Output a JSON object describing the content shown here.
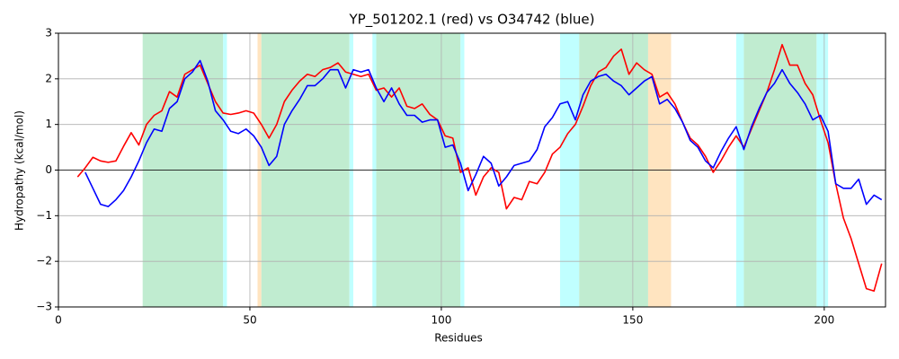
{
  "chart_data": {
    "type": "line",
    "title": "YP_501202.1 (red) vs O34742 (blue)",
    "x_label": "Residues",
    "y_label": "Hydropathy (kcal/mol)",
    "xlim": [
      0,
      216
    ],
    "ylim": [
      -3,
      3
    ],
    "xticks": [
      0,
      50,
      100,
      150,
      200
    ],
    "yticks": [
      {
        "value": -3,
        "label": "−3"
      },
      {
        "value": -2,
        "label": "−2"
      },
      {
        "value": -1,
        "label": "−1"
      },
      0,
      1,
      2,
      3
    ],
    "grid": true,
    "reference_line": 0,
    "regions": [
      {
        "start": 22,
        "end": 43,
        "color": "#c0ecd0"
      },
      {
        "start": 43,
        "end": 44,
        "color": "#c0ffff"
      },
      {
        "start": 52,
        "end": 53,
        "color": "#ffe4c0"
      },
      {
        "start": 53,
        "end": 76,
        "color": "#c0ecd0"
      },
      {
        "start": 76,
        "end": 77,
        "color": "#c0ffff"
      },
      {
        "start": 82,
        "end": 83,
        "color": "#c0ffff"
      },
      {
        "start": 83,
        "end": 105,
        "color": "#c0ecd0"
      },
      {
        "start": 105,
        "end": 106,
        "color": "#c0ffff"
      },
      {
        "start": 131,
        "end": 136,
        "color": "#c0ffff"
      },
      {
        "start": 136,
        "end": 154,
        "color": "#c0ecd0"
      },
      {
        "start": 154,
        "end": 160,
        "color": "#ffe4c0"
      },
      {
        "start": 177,
        "end": 179,
        "color": "#c0ffff"
      },
      {
        "start": 179,
        "end": 198,
        "color": "#c0ecd0"
      },
      {
        "start": 198,
        "end": 201,
        "color": "#c0ffff"
      }
    ],
    "x": [
      5,
      7,
      9,
      11,
      13,
      15,
      17,
      19,
      21,
      23,
      25,
      27,
      29,
      31,
      33,
      35,
      37,
      39,
      41,
      43,
      45,
      47,
      49,
      51,
      53,
      55,
      57,
      59,
      61,
      63,
      65,
      67,
      69,
      71,
      73,
      75,
      77,
      79,
      81,
      83,
      85,
      87,
      89,
      91,
      93,
      95,
      97,
      99,
      101,
      103,
      105,
      107,
      109,
      111,
      113,
      115,
      117,
      119,
      121,
      123,
      125,
      127,
      129,
      131,
      133,
      135,
      137,
      139,
      141,
      143,
      145,
      147,
      149,
      151,
      153,
      155,
      157,
      159,
      161,
      163,
      165,
      167,
      169,
      171,
      173,
      175,
      177,
      179,
      181,
      183,
      185,
      187,
      189,
      191,
      193,
      195,
      197,
      199,
      201,
      203,
      205,
      207,
      209,
      211,
      213,
      215
    ],
    "series": [
      {
        "name": "YP_501202.1",
        "color": "#ff0000",
        "values": [
          -0.15,
          0.05,
          0.28,
          0.2,
          0.17,
          0.2,
          0.52,
          0.82,
          0.55,
          1.0,
          1.2,
          1.3,
          1.72,
          1.6,
          2.1,
          2.2,
          2.3,
          1.9,
          1.5,
          1.25,
          1.22,
          1.25,
          1.3,
          1.25,
          1.0,
          0.7,
          1.0,
          1.5,
          1.75,
          1.95,
          2.1,
          2.05,
          2.2,
          2.25,
          2.35,
          2.15,
          2.1,
          2.05,
          2.1,
          1.75,
          1.8,
          1.6,
          1.8,
          1.4,
          1.35,
          1.45,
          1.22,
          1.1,
          0.75,
          0.7,
          -0.05,
          0.05,
          -0.55,
          -0.15,
          0.05,
          -0.05,
          -0.85,
          -0.6,
          -0.65,
          -0.25,
          -0.3,
          -0.05,
          0.35,
          0.5,
          0.8,
          1.0,
          1.4,
          1.85,
          2.15,
          2.25,
          2.5,
          2.65,
          2.1,
          2.35,
          2.2,
          2.1,
          1.6,
          1.7,
          1.45,
          1.05,
          0.7,
          0.55,
          0.3,
          -0.05,
          0.2,
          0.5,
          0.75,
          0.5,
          0.9,
          1.3,
          1.7,
          2.2,
          2.75,
          2.3,
          2.3,
          1.9,
          1.65,
          1.1,
          0.6,
          -0.3,
          -1.05,
          -1.5,
          -2.05,
          -2.6,
          -2.65,
          -2.05
        ]
      },
      {
        "name": "O34742",
        "color": "#0000ff",
        "values": [
          null,
          -0.05,
          -0.4,
          -0.75,
          -0.8,
          -0.65,
          -0.45,
          -0.15,
          0.2,
          0.6,
          0.9,
          0.85,
          1.35,
          1.5,
          2.0,
          2.15,
          2.4,
          1.95,
          1.3,
          1.1,
          0.85,
          0.8,
          0.9,
          0.75,
          0.5,
          0.1,
          0.3,
          1.0,
          1.3,
          1.55,
          1.85,
          1.85,
          2.0,
          2.2,
          2.2,
          1.8,
          2.2,
          2.15,
          2.2,
          1.8,
          1.5,
          1.8,
          1.45,
          1.2,
          1.2,
          1.05,
          1.1,
          1.1,
          0.5,
          0.55,
          0.15,
          -0.45,
          -0.1,
          0.3,
          0.15,
          -0.35,
          -0.15,
          0.1,
          0.15,
          0.2,
          0.45,
          0.95,
          1.15,
          1.45,
          1.5,
          1.1,
          1.65,
          1.95,
          2.05,
          2.1,
          1.95,
          1.85,
          1.65,
          1.8,
          1.95,
          2.05,
          1.45,
          1.55,
          1.35,
          1.05,
          0.65,
          0.5,
          0.2,
          0.05,
          0.4,
          0.7,
          0.95,
          0.45,
          0.95,
          1.35,
          1.7,
          1.9,
          2.2,
          1.9,
          1.7,
          1.45,
          1.1,
          1.2,
          0.85,
          -0.3,
          -0.4,
          -0.4,
          -0.2,
          -0.75,
          -0.55,
          -0.65
        ]
      }
    ]
  }
}
